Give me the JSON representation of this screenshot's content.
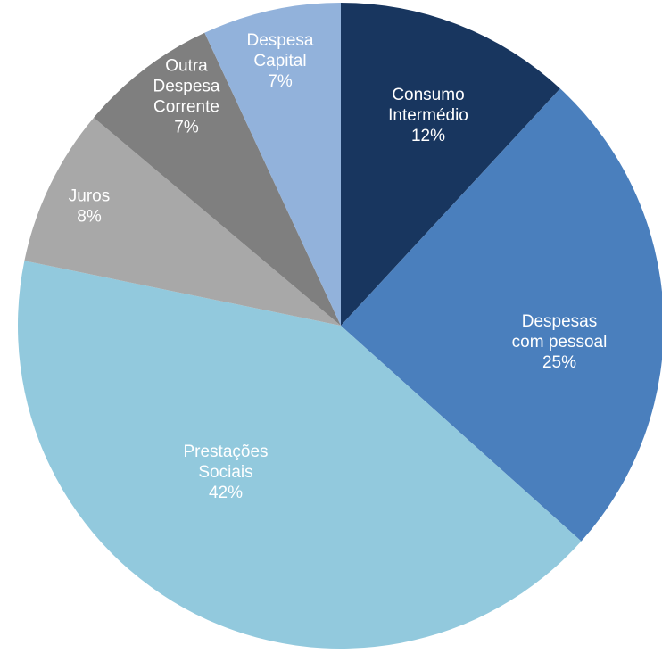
{
  "chart_data": {
    "type": "pie",
    "title": "",
    "start_angle_deg": 0,
    "direction": "clockwise",
    "slices": [
      {
        "name": "Consumo Intermédio",
        "label_lines": [
          "Consumo",
          "Intermédio"
        ],
        "percent_label": "12%",
        "value": 12,
        "color": "#18365f"
      },
      {
        "name": "Despesas com pessoal",
        "label_lines": [
          "Despesas",
          "com pessoal"
        ],
        "percent_label": "25%",
        "value": 25,
        "color": "#4a7fbd"
      },
      {
        "name": "Prestações Sociais",
        "label_lines": [
          "Prestações",
          "Sociais"
        ],
        "percent_label": "42%",
        "value": 42,
        "color": "#92c9dd"
      },
      {
        "name": "Juros",
        "label_lines": [
          "Juros"
        ],
        "percent_label": "8%",
        "value": 8,
        "color": "#a8a8a8"
      },
      {
        "name": "Outra Despesa Corrente",
        "label_lines": [
          "Outra",
          "Despesa",
          "Corrente"
        ],
        "percent_label": "7%",
        "value": 7,
        "color": "#7f7f7f"
      },
      {
        "name": "Despesa Capital",
        "label_lines": [
          "Despesa",
          "Capital"
        ],
        "percent_label": "7%",
        "value": 7,
        "color": "#92b2db"
      }
    ]
  }
}
